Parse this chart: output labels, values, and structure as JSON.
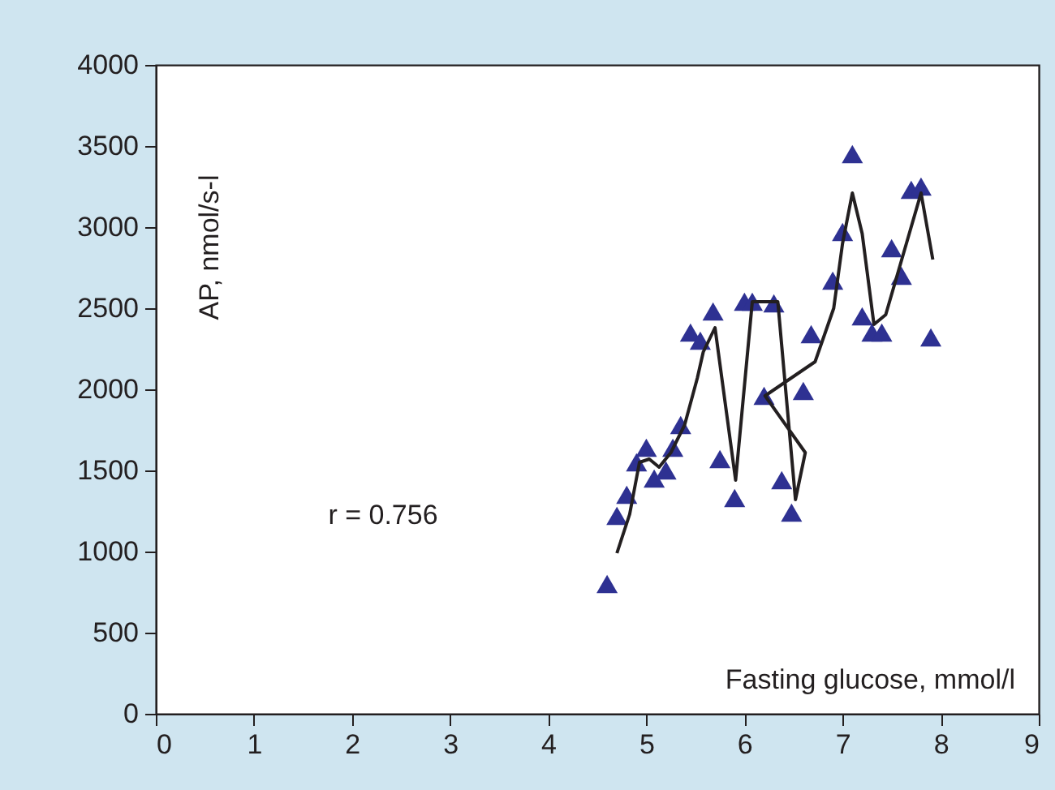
{
  "chart_data": {
    "type": "scatter",
    "xlabel": "Fasting glucose, mmol/l",
    "ylabel": "AP, nmol/s-l",
    "annotations": [
      "r = 0.756"
    ],
    "xlim": [
      0,
      9
    ],
    "xticks": [
      0,
      1,
      2,
      3,
      4,
      5,
      6,
      7,
      8,
      9
    ],
    "ylim": [
      0,
      4000
    ],
    "yticks": [
      0,
      500,
      1000,
      1500,
      2000,
      2500,
      3000,
      3500,
      4000
    ],
    "grid": false,
    "marker": "triangle",
    "series": [
      {
        "color": "#2e3192",
        "x": [
          4.6,
          4.7,
          4.8,
          4.9,
          5.0,
          5.08,
          5.2,
          5.27,
          5.35,
          5.45,
          5.55,
          5.68,
          5.75,
          5.9,
          6.0,
          6.08,
          6.2,
          6.3,
          6.38,
          6.48,
          6.6,
          6.68,
          6.9,
          7.0,
          7.1,
          7.2,
          7.3,
          7.4,
          7.5,
          7.6,
          7.7,
          7.8,
          7.9
        ],
        "values": [
          800,
          1220,
          1350,
          1550,
          1640,
          1450,
          1500,
          1640,
          1780,
          2350,
          2300,
          2480,
          1570,
          1330,
          2540,
          2540,
          1960,
          2530,
          1440,
          1240,
          1990,
          2340,
          2670,
          2970,
          3450,
          2450,
          2350,
          2350,
          2870,
          2700,
          3230,
          3250,
          2320
        ]
      },
      {
        "type": "line",
        "color": "#231f20",
        "marker": "none",
        "x": [
          4.7,
          4.83,
          4.93,
          5.03,
          5.13,
          5.25,
          5.39,
          5.52,
          5.58,
          5.7,
          5.91,
          6.08,
          6.34,
          6.52,
          6.62,
          6.21,
          6.72,
          6.91,
          7.0,
          7.1,
          7.2,
          7.32,
          7.44,
          7.68,
          7.8,
          7.92
        ],
        "values": [
          990,
          1230,
          1550,
          1570,
          1520,
          1610,
          1780,
          2070,
          2230,
          2380,
          1440,
          2540,
          2540,
          1320,
          1610,
          1960,
          2170,
          2500,
          2900,
          3210,
          2960,
          2400,
          2460,
          2960,
          3210,
          2800
        ]
      }
    ]
  }
}
